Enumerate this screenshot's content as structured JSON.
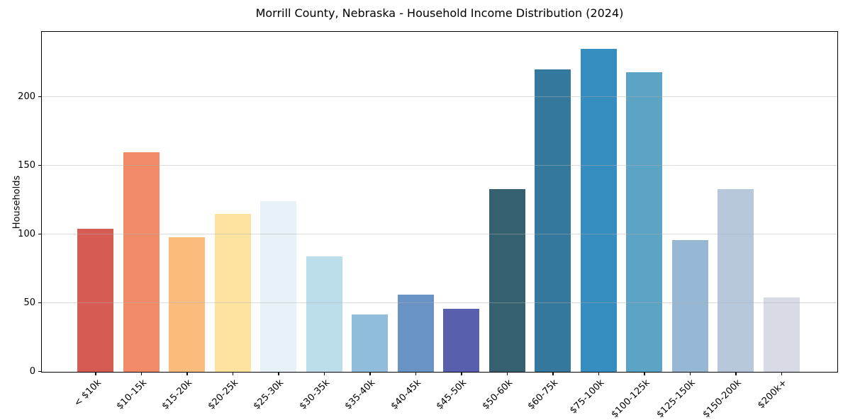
{
  "title": "Morrill County, Nebraska - Household Income Distribution (2024)",
  "y_axis": {
    "label": "Households"
  },
  "chart_data": {
    "type": "bar",
    "title": "Morrill County, Nebraska - Household Income Distribution (2024)",
    "xlabel": "",
    "ylabel": "Households",
    "categories": [
      "< $10k",
      "$10-15k",
      "$15-20k",
      "$20-25k",
      "$25-30k",
      "$30-35k",
      "$35-40k",
      "$40-45k",
      "$45-50k",
      "$50-60k",
      "$60-75k",
      "$75-100k",
      "$100-125k",
      "$125-150k",
      "$150-200k",
      "$200k+"
    ],
    "values": [
      104,
      160,
      98,
      115,
      124,
      84,
      42,
      56,
      46,
      133,
      220,
      235,
      218,
      96,
      133,
      54
    ],
    "bar_colors": [
      "#d65b52",
      "#f18a66",
      "#fbbb7d",
      "#fde2a0",
      "#e6f2f7",
      "#bbddec",
      "#91bddc",
      "#6a93c5",
      "#5a5fad",
      "#35606f",
      "#34799d",
      "#358dc0",
      "#5ba4c6",
      "#97b8d5",
      "#b7c7dc",
      "#d8dae6"
    ],
    "yticks": [
      0,
      50,
      100,
      150,
      200
    ],
    "ylim": [
      0,
      247
    ],
    "grid": "horizontal-only, light gray, drawn over bars",
    "legend": "none",
    "background": "#ffffff",
    "frame": "full box, black spines"
  }
}
